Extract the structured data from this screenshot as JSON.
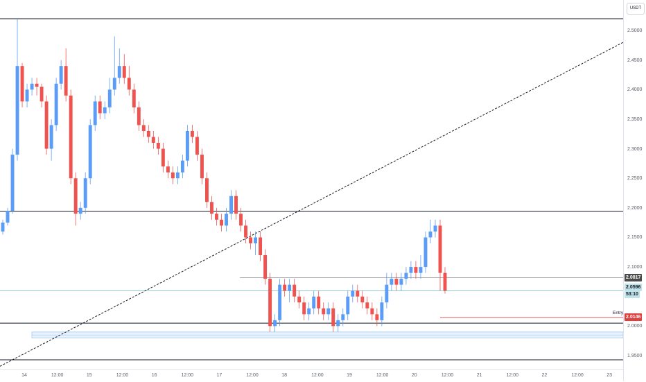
{
  "currency_label": "USDT",
  "price_axis": [
    {
      "p": 2.5,
      "label": "2.5000"
    },
    {
      "p": 2.45,
      "label": "2.4500"
    },
    {
      "p": 2.4,
      "label": "2.4000"
    },
    {
      "p": 2.35,
      "label": "2.3500"
    },
    {
      "p": 2.3,
      "label": "2.3000"
    },
    {
      "p": 2.25,
      "label": "2.2500"
    },
    {
      "p": 2.2,
      "label": "2.2000"
    },
    {
      "p": 2.15,
      "label": "2.1500"
    },
    {
      "p": 2.1,
      "label": "2.1000"
    },
    {
      "p": 2.0,
      "label": "2.0000"
    },
    {
      "p": 1.95,
      "label": "1.9500"
    }
  ],
  "time_axis": [
    {
      "label": "14"
    },
    {
      "label": "12:00"
    },
    {
      "label": "15"
    },
    {
      "label": "12:00"
    },
    {
      "label": "16"
    },
    {
      "label": "12:00"
    },
    {
      "label": "17"
    },
    {
      "label": "12:00"
    },
    {
      "label": "18"
    },
    {
      "label": "12:00"
    },
    {
      "label": "19"
    },
    {
      "label": "12:00"
    },
    {
      "label": "20"
    },
    {
      "label": "12:00"
    },
    {
      "label": "21"
    },
    {
      "label": "12:00"
    },
    {
      "label": "22"
    },
    {
      "label": "12:00"
    },
    {
      "label": "23"
    }
  ],
  "price_tags": {
    "level": {
      "label": "2.0817",
      "p": 2.0817,
      "bg": "#4a4a4a",
      "fg": "#ffffff"
    },
    "current": {
      "label": "2.0596",
      "p": 2.0596,
      "bg": "#bfe3e8",
      "fg": "#131722"
    },
    "countdown": {
      "label": "53:10",
      "bg": "#bfe3e8",
      "fg": "#131722"
    },
    "entry": {
      "label": "2.0146",
      "p": 2.0146,
      "bg": "#e33e3e",
      "fg": "#ffffff"
    }
  },
  "entry_label": "Entry",
  "colors": {
    "up": "#5b9cf6",
    "down": "#ef5350",
    "line": "#131722",
    "entry": "#e33e3e",
    "zone": "#9fc8f0"
  },
  "chart_data": {
    "type": "candlestick",
    "symbol_quote": "USDT",
    "ylim": [
      1.93,
      2.53
    ],
    "horizontal_levels": [
      2.52,
      2.194,
      2.0817,
      2.005,
      1.943
    ],
    "zone": [
      1.98,
      1.99
    ],
    "trendline": {
      "from": {
        "p": 1.932
      },
      "to": {
        "p": 2.48
      }
    },
    "entry_line": 2.0146,
    "candles": [
      [
        2.16,
        2.175,
        2.155,
        2.18
      ],
      [
        2.175,
        2.195,
        2.17,
        2.2
      ],
      [
        2.195,
        2.29,
        2.19,
        2.3
      ],
      [
        2.29,
        2.44,
        2.28,
        2.52
      ],
      [
        2.44,
        2.38,
        2.37,
        2.445
      ],
      [
        2.38,
        2.4,
        2.37,
        2.41
      ],
      [
        2.4,
        2.41,
        2.39,
        2.42
      ],
      [
        2.41,
        2.405,
        2.39,
        2.42
      ],
      [
        2.405,
        2.38,
        2.37,
        2.41
      ],
      [
        2.38,
        2.3,
        2.29,
        2.39
      ],
      [
        2.3,
        2.34,
        2.28,
        2.35
      ],
      [
        2.34,
        2.41,
        2.33,
        2.42
      ],
      [
        2.41,
        2.44,
        2.4,
        2.45
      ],
      [
        2.44,
        2.39,
        2.38,
        2.47
      ],
      [
        2.39,
        2.25,
        2.24,
        2.4
      ],
      [
        2.25,
        2.19,
        2.17,
        2.26
      ],
      [
        2.19,
        2.2,
        2.18,
        2.21
      ],
      [
        2.2,
        2.25,
        2.19,
        2.26
      ],
      [
        2.25,
        2.34,
        2.24,
        2.35
      ],
      [
        2.34,
        2.38,
        2.33,
        2.39
      ],
      [
        2.38,
        2.36,
        2.35,
        2.39
      ],
      [
        2.36,
        2.37,
        2.35,
        2.38
      ],
      [
        2.37,
        2.4,
        2.36,
        2.42
      ],
      [
        2.4,
        2.42,
        2.39,
        2.49
      ],
      [
        2.42,
        2.44,
        2.41,
        2.47
      ],
      [
        2.44,
        2.42,
        2.41,
        2.46
      ],
      [
        2.42,
        2.4,
        2.39,
        2.44
      ],
      [
        2.4,
        2.37,
        2.36,
        2.41
      ],
      [
        2.37,
        2.34,
        2.33,
        2.38
      ],
      [
        2.34,
        2.33,
        2.32,
        2.35
      ],
      [
        2.33,
        2.32,
        2.31,
        2.34
      ],
      [
        2.32,
        2.31,
        2.3,
        2.33
      ],
      [
        2.31,
        2.3,
        2.29,
        2.32
      ],
      [
        2.3,
        2.27,
        2.26,
        2.31
      ],
      [
        2.27,
        2.26,
        2.25,
        2.28
      ],
      [
        2.26,
        2.25,
        2.24,
        2.27
      ],
      [
        2.25,
        2.26,
        2.24,
        2.27
      ],
      [
        2.26,
        2.28,
        2.25,
        2.29
      ],
      [
        2.28,
        2.33,
        2.27,
        2.34
      ],
      [
        2.33,
        2.32,
        2.31,
        2.34
      ],
      [
        2.32,
        2.29,
        2.28,
        2.33
      ],
      [
        2.29,
        2.25,
        2.24,
        2.3
      ],
      [
        2.25,
        2.21,
        2.2,
        2.26
      ],
      [
        2.21,
        2.19,
        2.18,
        2.22
      ],
      [
        2.19,
        2.18,
        2.17,
        2.2
      ],
      [
        2.18,
        2.17,
        2.16,
        2.19
      ],
      [
        2.17,
        2.19,
        2.16,
        2.2
      ],
      [
        2.19,
        2.22,
        2.18,
        2.23
      ],
      [
        2.22,
        2.19,
        2.18,
        2.23
      ],
      [
        2.19,
        2.17,
        2.16,
        2.2
      ],
      [
        2.17,
        2.15,
        2.14,
        2.18
      ],
      [
        2.15,
        2.14,
        2.13,
        2.16
      ],
      [
        2.14,
        2.15,
        2.12,
        2.16
      ],
      [
        2.15,
        2.12,
        2.11,
        2.16
      ],
      [
        2.12,
        2.08,
        2.07,
        2.13
      ],
      [
        2.08,
        2.0,
        1.99,
        2.09
      ],
      [
        2.0,
        2.01,
        1.99,
        2.02
      ],
      [
        2.01,
        2.07,
        2.0,
        2.08
      ],
      [
        2.07,
        2.06,
        2.05,
        2.08
      ],
      [
        2.06,
        2.07,
        2.04,
        2.08
      ],
      [
        2.07,
        2.05,
        2.04,
        2.08
      ],
      [
        2.05,
        2.04,
        2.03,
        2.06
      ],
      [
        2.04,
        2.02,
        2.01,
        2.05
      ],
      [
        2.02,
        2.03,
        2.01,
        2.04
      ],
      [
        2.03,
        2.05,
        2.02,
        2.06
      ],
      [
        2.05,
        2.03,
        2.02,
        2.06
      ],
      [
        2.03,
        2.02,
        2.01,
        2.04
      ],
      [
        2.02,
        2.03,
        2.01,
        2.04
      ],
      [
        2.03,
        2.0,
        1.99,
        2.04
      ],
      [
        2.0,
        2.01,
        1.99,
        2.02
      ],
      [
        2.01,
        2.02,
        2.0,
        2.03
      ],
      [
        2.02,
        2.05,
        2.01,
        2.06
      ],
      [
        2.05,
        2.06,
        2.04,
        2.07
      ],
      [
        2.06,
        2.05,
        2.04,
        2.07
      ],
      [
        2.05,
        2.04,
        2.03,
        2.06
      ],
      [
        2.04,
        2.03,
        2.02,
        2.05
      ],
      [
        2.03,
        2.02,
        2.01,
        2.04
      ],
      [
        2.02,
        2.01,
        2.0,
        2.03
      ],
      [
        2.01,
        2.04,
        2.0,
        2.05
      ],
      [
        2.04,
        2.07,
        2.03,
        2.09
      ],
      [
        2.07,
        2.08,
        2.06,
        2.09
      ],
      [
        2.08,
        2.07,
        2.06,
        2.09
      ],
      [
        2.07,
        2.08,
        2.06,
        2.09
      ],
      [
        2.08,
        2.09,
        2.07,
        2.1
      ],
      [
        2.09,
        2.1,
        2.08,
        2.11
      ],
      [
        2.1,
        2.09,
        2.08,
        2.11
      ],
      [
        2.09,
        2.1,
        2.08,
        2.12
      ],
      [
        2.1,
        2.15,
        2.09,
        2.16
      ],
      [
        2.15,
        2.16,
        2.14,
        2.18
      ],
      [
        2.16,
        2.17,
        2.15,
        2.18
      ],
      [
        2.17,
        2.09,
        2.06,
        2.18
      ],
      [
        2.09,
        2.06,
        2.055,
        2.1
      ]
    ]
  }
}
